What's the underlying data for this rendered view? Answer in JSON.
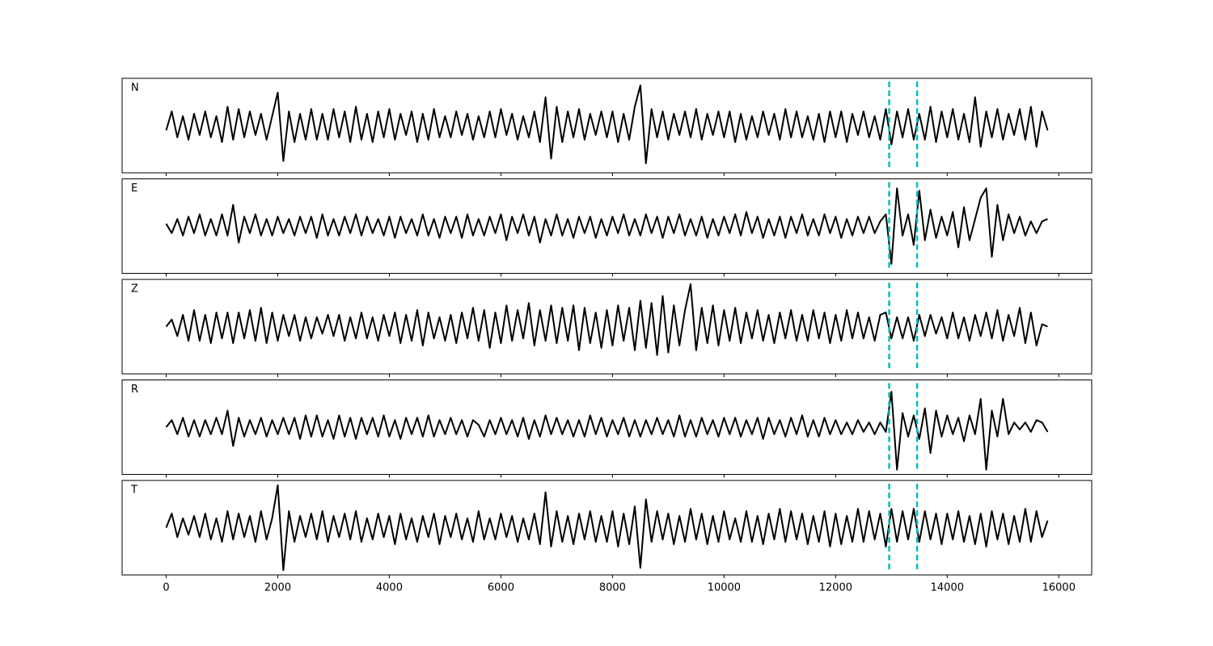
{
  "chart_data": {
    "type": "line",
    "x": [
      0,
      100,
      200,
      300,
      400,
      500,
      600,
      700,
      800,
      900,
      1000,
      1100,
      1200,
      1300,
      1400,
      1500,
      1600,
      1700,
      1800,
      1900,
      2000,
      2100,
      2200,
      2300,
      2400,
      2500,
      2600,
      2700,
      2800,
      2900,
      3000,
      3100,
      3200,
      3300,
      3400,
      3500,
      3600,
      3700,
      3800,
      3900,
      4000,
      4100,
      4200,
      4300,
      4400,
      4500,
      4600,
      4700,
      4800,
      4900,
      5000,
      5100,
      5200,
      5300,
      5400,
      5500,
      5600,
      5700,
      5800,
      5900,
      6000,
      6100,
      6200,
      6300,
      6400,
      6500,
      6600,
      6700,
      6800,
      6900,
      7000,
      7100,
      7200,
      7300,
      7400,
      7500,
      7600,
      7700,
      7800,
      7900,
      8000,
      8100,
      8200,
      8300,
      8400,
      8500,
      8600,
      8700,
      8800,
      8900,
      9000,
      9100,
      9200,
      9300,
      9400,
      9500,
      9600,
      9700,
      9800,
      9900,
      10000,
      10100,
      10200,
      10300,
      10400,
      10500,
      10600,
      10700,
      10800,
      10900,
      11000,
      11100,
      11200,
      11300,
      11400,
      11500,
      11600,
      11700,
      11800,
      11900,
      12000,
      12100,
      12200,
      12300,
      12400,
      12500,
      12600,
      12700,
      12800,
      12900,
      13000,
      13100,
      13200,
      13300,
      13400,
      13500,
      13600,
      13700,
      13800,
      13900,
      14000,
      14100,
      14200,
      14300,
      14400,
      14500,
      14600,
      14700,
      14800,
      14900,
      15000,
      15100,
      15200,
      15300,
      15400,
      15500,
      15600,
      15700,
      15800
    ],
    "series": [
      {
        "name": "N",
        "color": "#000000",
        "values": [
          -10,
          30,
          -25,
          20,
          -30,
          25,
          -20,
          30,
          -25,
          20,
          -35,
          40,
          -30,
          35,
          -25,
          30,
          -20,
          25,
          -30,
          20,
          70,
          -75,
          30,
          -35,
          25,
          -30,
          35,
          -30,
          25,
          -30,
          35,
          -25,
          30,
          -35,
          40,
          -30,
          25,
          -35,
          30,
          -25,
          35,
          -30,
          25,
          -20,
          30,
          -35,
          25,
          -30,
          35,
          -25,
          20,
          -25,
          30,
          -20,
          25,
          -30,
          20,
          -25,
          30,
          -25,
          35,
          -20,
          25,
          -30,
          20,
          -25,
          30,
          -35,
          60,
          -70,
          40,
          -35,
          30,
          -25,
          35,
          -30,
          25,
          -20,
          30,
          -25,
          30,
          -35,
          25,
          -30,
          40,
          85,
          -80,
          35,
          -25,
          30,
          -30,
          25,
          -20,
          30,
          -25,
          35,
          -30,
          25,
          -20,
          30,
          -25,
          30,
          -35,
          25,
          -30,
          20,
          -25,
          30,
          -20,
          25,
          -30,
          35,
          -25,
          30,
          -25,
          20,
          -30,
          25,
          -35,
          30,
          -25,
          30,
          -35,
          25,
          -20,
          30,
          -25,
          20,
          -30,
          35,
          -40,
          30,
          -25,
          35,
          -30,
          25,
          -30,
          40,
          -35,
          30,
          -25,
          35,
          -30,
          25,
          -35,
          60,
          -45,
          30,
          -25,
          35,
          -30,
          25,
          -20,
          35,
          -30,
          40,
          -45,
          30,
          -10
        ]
      },
      {
        "name": "E",
        "color": "#000000",
        "values": [
          5,
          -15,
          15,
          -20,
          20,
          -15,
          25,
          -20,
          15,
          -20,
          25,
          -20,
          45,
          -35,
          20,
          -15,
          25,
          -20,
          15,
          -20,
          20,
          -15,
          15,
          -20,
          20,
          -15,
          20,
          -25,
          25,
          -20,
          15,
          -20,
          20,
          -15,
          25,
          -20,
          20,
          -15,
          15,
          -20,
          20,
          -25,
          20,
          -15,
          15,
          -20,
          25,
          -20,
          15,
          -25,
          20,
          -15,
          20,
          -25,
          25,
          -20,
          15,
          -20,
          20,
          -15,
          25,
          -30,
          20,
          -15,
          25,
          -20,
          20,
          -35,
          15,
          -20,
          25,
          -20,
          15,
          -25,
          20,
          -15,
          20,
          -25,
          15,
          -20,
          20,
          -15,
          25,
          -20,
          15,
          -20,
          25,
          -15,
          20,
          -25,
          20,
          -15,
          25,
          -20,
          15,
          -20,
          20,
          -25,
          15,
          -20,
          20,
          -15,
          25,
          -20,
          30,
          -15,
          20,
          -25,
          15,
          -20,
          20,
          -25,
          20,
          -15,
          25,
          -20,
          15,
          -20,
          25,
          -15,
          20,
          -25,
          15,
          -20,
          20,
          -15,
          20,
          -15,
          10,
          25,
          -80,
          80,
          -20,
          25,
          -40,
          75,
          -30,
          35,
          -25,
          20,
          -20,
          30,
          -45,
          40,
          -30,
          15,
          60,
          80,
          -65,
          45,
          -30,
          25,
          -15,
          20,
          -20,
          10,
          -15,
          10,
          15
        ]
      },
      {
        "name": "Z",
        "color": "#000000",
        "values": [
          0,
          15,
          -20,
          25,
          -30,
          35,
          -30,
          25,
          -35,
          30,
          -25,
          30,
          -35,
          30,
          -25,
          35,
          -30,
          40,
          -35,
          30,
          -30,
          25,
          -20,
          25,
          -30,
          20,
          -25,
          20,
          -15,
          25,
          -20,
          25,
          -30,
          20,
          -25,
          30,
          -25,
          20,
          -30,
          25,
          -20,
          30,
          -35,
          25,
          -30,
          35,
          -40,
          30,
          -25,
          20,
          -30,
          25,
          -35,
          30,
          -25,
          40,
          -30,
          35,
          -45,
          30,
          -35,
          45,
          -30,
          35,
          -25,
          50,
          -40,
          35,
          -30,
          45,
          -35,
          40,
          -30,
          45,
          -50,
          40,
          -35,
          30,
          -45,
          35,
          -40,
          45,
          -30,
          40,
          -50,
          55,
          -45,
          50,
          -60,
          65,
          -55,
          45,
          -40,
          35,
          90,
          -50,
          40,
          -35,
          45,
          -40,
          35,
          -30,
          40,
          -35,
          30,
          -25,
          35,
          -30,
          25,
          -35,
          30,
          -25,
          35,
          -30,
          25,
          -30,
          35,
          -25,
          30,
          -35,
          25,
          -30,
          35,
          -25,
          30,
          -25,
          20,
          -30,
          25,
          30,
          -25,
          20,
          -25,
          20,
          -30,
          25,
          -20,
          25,
          -15,
          20,
          -25,
          30,
          -25,
          20,
          -30,
          25,
          -20,
          30,
          -25,
          35,
          -30,
          25,
          -20,
          40,
          -35,
          30,
          -40,
          5,
          0
        ]
      },
      {
        "name": "R",
        "color": "#000000",
        "values": [
          0,
          15,
          -15,
          20,
          -20,
          15,
          -20,
          15,
          -15,
          20,
          -15,
          35,
          -40,
          20,
          -20,
          15,
          -15,
          20,
          -20,
          15,
          -15,
          20,
          -15,
          20,
          -25,
          25,
          -20,
          25,
          -20,
          15,
          -25,
          25,
          -20,
          20,
          -25,
          20,
          -15,
          20,
          -20,
          25,
          -20,
          15,
          -25,
          20,
          -15,
          20,
          -20,
          25,
          -20,
          15,
          -15,
          20,
          -15,
          15,
          -20,
          15,
          5,
          -20,
          15,
          -15,
          20,
          -15,
          15,
          -20,
          20,
          -25,
          15,
          -20,
          25,
          -15,
          20,
          -15,
          15,
          -20,
          15,
          -20,
          25,
          -15,
          20,
          -20,
          15,
          -15,
          20,
          -20,
          15,
          -20,
          15,
          -15,
          20,
          -15,
          15,
          -20,
          25,
          -20,
          15,
          -20,
          20,
          -15,
          15,
          -20,
          20,
          -15,
          20,
          -20,
          15,
          -15,
          20,
          -25,
          20,
          -15,
          15,
          -20,
          20,
          -15,
          25,
          -20,
          15,
          -20,
          20,
          -15,
          15,
          -15,
          10,
          -15,
          15,
          -10,
          10,
          -15,
          10,
          -10,
          75,
          -90,
          30,
          -20,
          25,
          -25,
          40,
          -55,
          35,
          -20,
          25,
          -15,
          20,
          -30,
          25,
          -15,
          60,
          -90,
          35,
          -20,
          60,
          -15,
          10,
          -5,
          10,
          -10,
          15,
          10,
          -10
        ]
      },
      {
        "name": "T",
        "color": "#000000",
        "values": [
          0,
          30,
          -20,
          20,
          -15,
          25,
          -20,
          30,
          -25,
          20,
          -30,
          35,
          -25,
          30,
          -20,
          25,
          -30,
          35,
          -25,
          20,
          90,
          -90,
          35,
          -30,
          25,
          -20,
          30,
          -25,
          35,
          -30,
          25,
          -20,
          30,
          -25,
          35,
          -30,
          20,
          -25,
          30,
          -20,
          25,
          -35,
          30,
          -25,
          20,
          -30,
          25,
          -20,
          30,
          -35,
          25,
          -20,
          30,
          -25,
          20,
          -30,
          35,
          -25,
          20,
          -25,
          30,
          -20,
          25,
          -30,
          20,
          -25,
          30,
          -35,
          75,
          -40,
          35,
          -30,
          25,
          -35,
          30,
          -25,
          35,
          -30,
          25,
          -30,
          35,
          -40,
          30,
          -35,
          45,
          -85,
          60,
          -30,
          35,
          -25,
          30,
          -35,
          25,
          -30,
          40,
          -25,
          30,
          -35,
          25,
          -30,
          35,
          -25,
          20,
          -30,
          35,
          -30,
          25,
          -35,
          30,
          -25,
          40,
          -30,
          35,
          -25,
          30,
          -35,
          25,
          -30,
          35,
          -40,
          30,
          -35,
          25,
          -30,
          40,
          -30,
          35,
          -25,
          30,
          -40,
          40,
          -30,
          35,
          -25,
          40,
          -30,
          35,
          -25,
          30,
          -35,
          30,
          -25,
          35,
          -30,
          25,
          -35,
          30,
          -40,
          35,
          -25,
          30,
          -35,
          25,
          -30,
          40,
          -30,
          35,
          -20,
          15
        ]
      }
    ],
    "xlim": [
      -790,
      16590
    ],
    "xticks": [
      0,
      2000,
      4000,
      6000,
      8000,
      10000,
      12000,
      14000,
      16000
    ],
    "ylim": [
      -100,
      100
    ],
    "vlines": [
      12960,
      13460
    ],
    "vline_color": "#00bfbf"
  }
}
